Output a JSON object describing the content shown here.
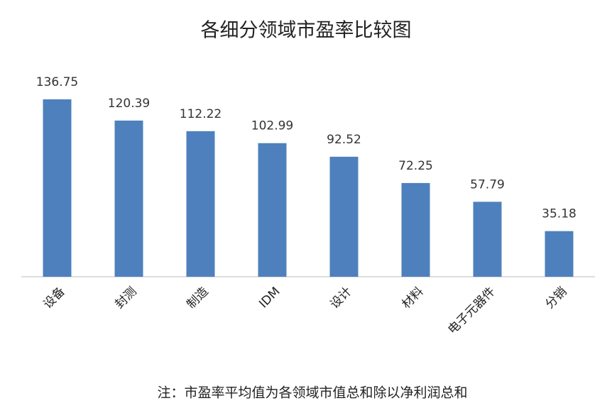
{
  "chart_data": {
    "type": "bar",
    "title": "各细分领域市盈率比较图",
    "categories": [
      "设备",
      "封测",
      "制造",
      "IDM",
      "设计",
      "材料",
      "电子元器件",
      "分销"
    ],
    "values": [
      136.75,
      120.39,
      112.22,
      102.99,
      92.52,
      72.25,
      57.79,
      35.18
    ],
    "color": "#4e80bd",
    "note": "注：市盈率平均值为各领域市值总和除以净利润总和"
  }
}
